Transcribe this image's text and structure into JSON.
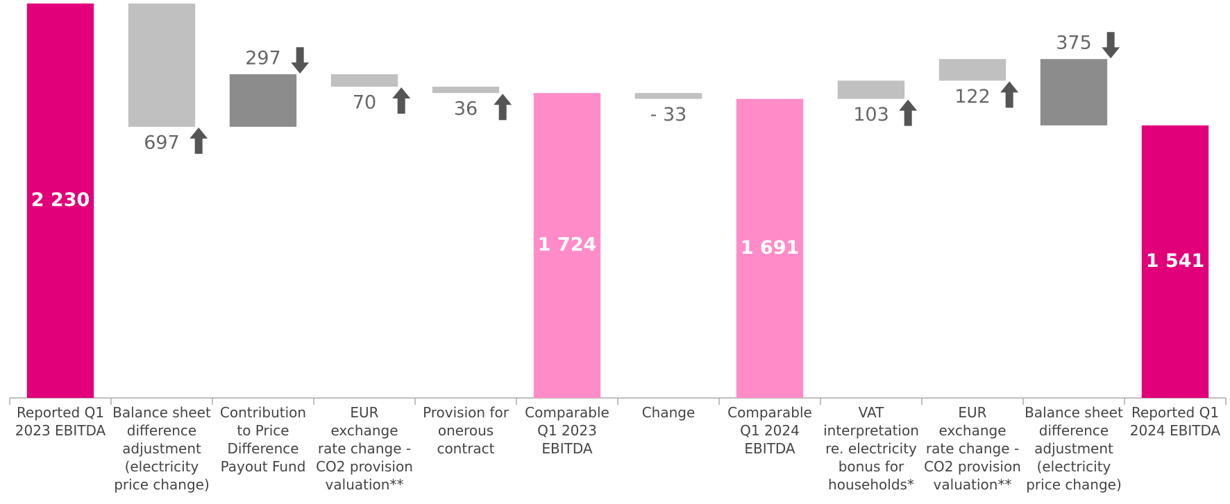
{
  "chart_data": {
    "type": "waterfall",
    "categories": [
      "Reported Q1 2023 EBITDA",
      "Balance sheet difference adjustment (electricity price change)",
      "Contribution to Price Difference Payout Fund",
      "EUR exchange rate change - CO2 provision valuation**",
      "Provision for onerous contract",
      "Comparable Q1 2023 EBITDA",
      "Change",
      "Comparable Q1 2024 EBITDA",
      "VAT interpretation re. electricity bonus for households*",
      "EUR exchange rate change - CO2 provision valuation**",
      "Balance sheet difference adjustment (electricity price change)",
      "Reported Q1 2024 EBITDA"
    ],
    "values": [
      2230,
      -697,
      297,
      -70,
      -36,
      1724,
      -33,
      1691,
      103,
      122,
      -375,
      1541
    ],
    "value_labels": [
      "2 230",
      "697",
      "297",
      "70",
      "36",
      "1 724",
      "- 33",
      "1 691",
      "103",
      "122",
      "375",
      "1 541"
    ],
    "bar_types": [
      "total",
      "delta",
      "delta",
      "delta",
      "delta",
      "total",
      "delta",
      "total",
      "delta",
      "delta",
      "delta",
      "total"
    ],
    "colors": [
      "#e2007a",
      "#c0c0c0",
      "#8c8c8c",
      "#c0c0c0",
      "#c0c0c0",
      "#ff8cc8",
      "#c0c0c0",
      "#ff8cc8",
      "#c0c0c0",
      "#c0c0c0",
      "#8c8c8c",
      "#e2007a"
    ],
    "arrows": [
      null,
      "up",
      "down",
      "up",
      "up",
      null,
      null,
      null,
      "up",
      "up",
      "down",
      null
    ],
    "ylim": [
      0,
      2250
    ]
  }
}
